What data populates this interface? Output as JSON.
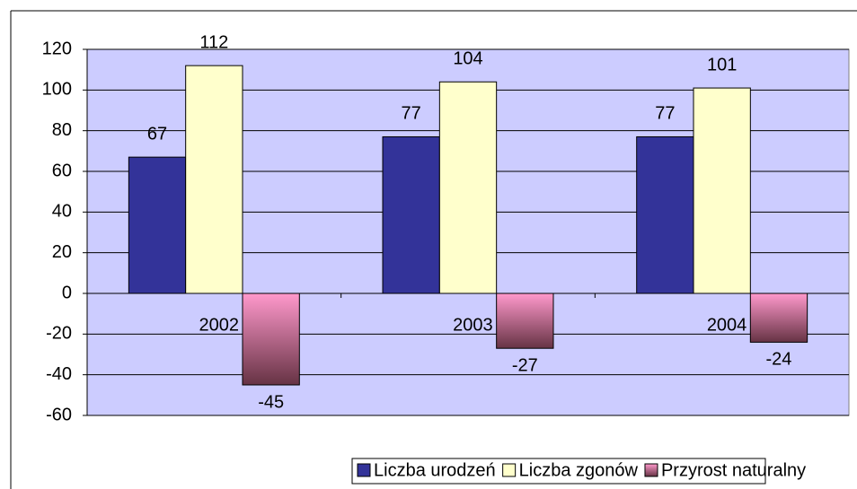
{
  "chart_data": {
    "type": "bar",
    "categories": [
      "2002",
      "2003",
      "2004"
    ],
    "series": [
      {
        "name": "Liczba urodzeń",
        "color": "#333399",
        "values": [
          67,
          77,
          77
        ]
      },
      {
        "name": "Liczba zgonów",
        "color": "#ffffcc",
        "values": [
          112,
          104,
          101
        ]
      },
      {
        "name": "Przyrost naturalny",
        "color": "#ff99cc",
        "values": [
          -45,
          -27,
          -24
        ]
      }
    ],
    "ylim": [
      -60,
      120
    ],
    "yticks": [
      -60,
      -40,
      -20,
      0,
      20,
      40,
      60,
      80,
      100,
      120
    ],
    "grid": true,
    "plot_background": "#ccccff",
    "legend": "bottom"
  }
}
